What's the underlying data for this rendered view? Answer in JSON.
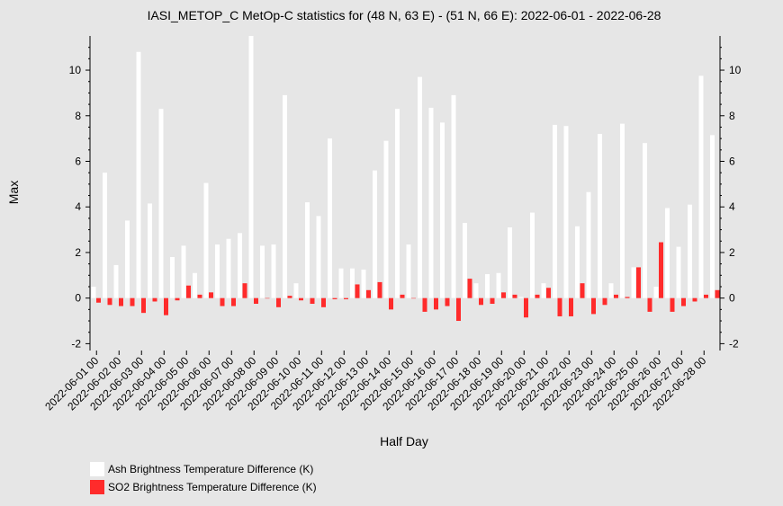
{
  "chart_data": {
    "type": "bar",
    "title": "IASI_METOP_C MetOp-C statistics for (48 N, 63 E) - (51 N, 66 E): 2022-06-01 - 2022-06-28",
    "xlabel": "Half Day",
    "ylabel": "Max",
    "ylim": [
      -2.3,
      11.5
    ],
    "yticks": [
      -2,
      0,
      2,
      4,
      6,
      8,
      10
    ],
    "xtick_labels": [
      "2022-06-01 00",
      "2022-06-02 00",
      "2022-06-03 00",
      "2022-06-04 00",
      "2022-06-05 00",
      "2022-06-06 00",
      "2022-06-07 00",
      "2022-06-08 00",
      "2022-06-09 00",
      "2022-06-10 00",
      "2022-06-11 00",
      "2022-06-12 00",
      "2022-06-13 00",
      "2022-06-14 00",
      "2022-06-15 00",
      "2022-06-16 00",
      "2022-06-17 00",
      "2022-06-18 00",
      "2022-06-19 00",
      "2022-06-20 00",
      "2022-06-21 00",
      "2022-06-22 00",
      "2022-06-23 00",
      "2022-06-24 00",
      "2022-06-25 00",
      "2022-06-26 00",
      "2022-06-27 00",
      "2022-06-28 00"
    ],
    "grid": false,
    "legend_placement": "bottom-left",
    "series": [
      {
        "name": "Ash Brightness Temperature Difference (K)",
        "color": "#ffffff",
        "values": [
          0.5,
          5.5,
          1.45,
          3.4,
          10.8,
          4.15,
          8.3,
          1.8,
          2.3,
          1.1,
          5.05,
          2.35,
          2.6,
          2.85,
          11.5,
          2.3,
          2.35,
          8.9,
          0.65,
          4.2,
          3.6,
          7.0,
          1.3,
          1.3,
          1.25,
          5.6,
          6.9,
          8.3,
          2.35,
          9.7,
          8.35,
          7.7,
          8.9,
          3.3,
          0.65,
          1.05,
          1.1,
          3.1,
          0.05,
          3.75,
          0.65,
          7.6,
          7.55,
          3.15,
          4.65,
          7.2,
          0.65,
          7.65,
          1.35,
          6.8,
          0.5,
          3.95,
          2.25,
          4.1,
          9.75,
          7.15
        ]
      },
      {
        "name": "SO2 Brightness Temperature Difference (K)",
        "color": "#ff2b2b",
        "values": [
          -0.2,
          -0.3,
          -0.35,
          -0.35,
          -0.65,
          -0.15,
          -0.75,
          -0.1,
          0.55,
          0.15,
          0.25,
          -0.35,
          -0.35,
          0.65,
          -0.25,
          0.0,
          -0.4,
          0.1,
          -0.1,
          -0.25,
          -0.4,
          -0.05,
          -0.05,
          0.6,
          0.35,
          0.7,
          -0.5,
          0.15,
          0.0,
          -0.6,
          -0.5,
          -0.35,
          -1.0,
          0.85,
          -0.3,
          -0.25,
          0.25,
          0.15,
          -0.85,
          0.15,
          0.45,
          -0.8,
          -0.8,
          0.65,
          -0.7,
          -0.3,
          0.15,
          0.05,
          1.35,
          -0.6,
          2.45,
          -0.6,
          -0.35,
          -0.15,
          0.15,
          0.35
        ]
      }
    ]
  }
}
